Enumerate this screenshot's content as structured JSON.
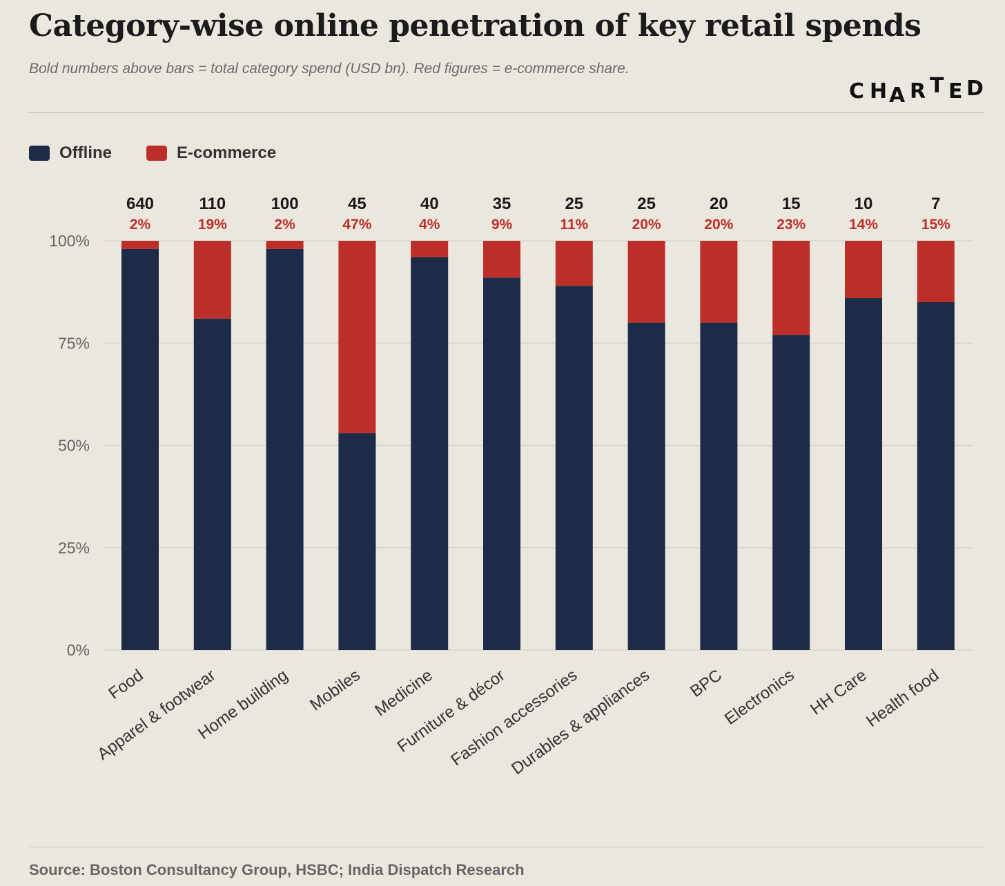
{
  "header": {
    "title": "Category-wise online penetration of key retail spends",
    "subtitle": "Bold numbers above bars = total category spend (USD bn). Red figures = e-commerce share.",
    "brand": [
      "C",
      "H",
      "A",
      "R",
      "T",
      "E",
      "D"
    ]
  },
  "legend": {
    "items": [
      {
        "label": "Offline",
        "color": "#1c2b48"
      },
      {
        "label": "E-commerce",
        "color": "#bc2f28"
      }
    ]
  },
  "footer": {
    "source": "Source: Boston Consultancy Group, HSBC; India Dispatch Research"
  },
  "colors": {
    "offline": "#1c2b48",
    "ecommerce": "#bc2f28",
    "spend_label": "#1a1a1a",
    "share_label": "#bc2f28",
    "grid": "#d6d1c8",
    "tick": "#666666",
    "category": "#333333"
  },
  "chart_data": {
    "type": "bar",
    "stacked": true,
    "title": "Category-wise online penetration of key retail spends",
    "ylim": [
      0,
      100
    ],
    "yticks": [
      0,
      25,
      50,
      75,
      100
    ],
    "ytick_labels": [
      "0%",
      "25%",
      "50%",
      "75%",
      "100%"
    ],
    "categories": [
      "Food",
      "Apparel & footwear",
      "Home building",
      "Mobiles",
      "Medicine",
      "Furniture & décor",
      "Fashion accessories",
      "Durables & appliances",
      "BPC",
      "Electronics",
      "HH Care",
      "Health food"
    ],
    "spend_labels": [
      "640",
      "110",
      "100",
      "45",
      "40",
      "35",
      "25",
      "25",
      "20",
      "15",
      "10",
      "7"
    ],
    "share_labels": [
      "2%",
      "19%",
      "2%",
      "47%",
      "4%",
      "9%",
      "11%",
      "20%",
      "20%",
      "23%",
      "14%",
      "15%"
    ],
    "series": [
      {
        "name": "Offline",
        "values": [
          98,
          81,
          98,
          53,
          96,
          91,
          89,
          80,
          80,
          77,
          86,
          85
        ]
      },
      {
        "name": "E-commerce",
        "values": [
          2,
          19,
          2,
          47,
          4,
          9,
          11,
          20,
          20,
          23,
          14,
          15
        ]
      }
    ],
    "legend": "top-left",
    "grid": true
  }
}
